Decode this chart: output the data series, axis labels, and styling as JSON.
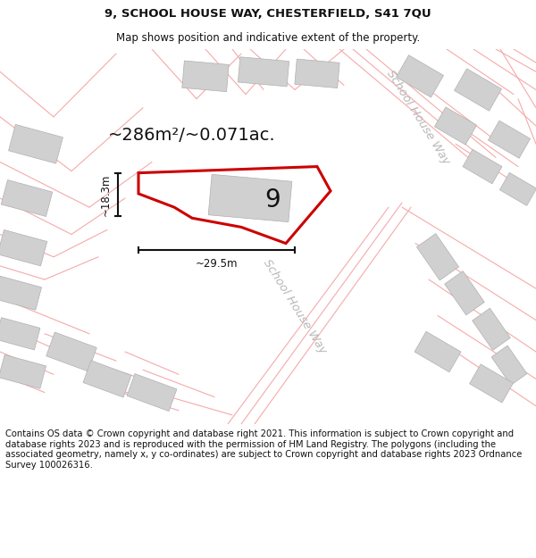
{
  "title": "9, SCHOOL HOUSE WAY, CHESTERFIELD, S41 7QU",
  "subtitle": "Map shows position and indicative extent of the property.",
  "footer": "Contains OS data © Crown copyright and database right 2021. This information is subject to Crown copyright and database rights 2023 and is reproduced with the permission of HM Land Registry. The polygons (including the associated geometry, namely x, y co-ordinates) are subject to Crown copyright and database rights 2023 Ordnance Survey 100026316.",
  "area_label": "~286m²/~0.071ac.",
  "property_number": "9",
  "dim_width": "~29.5m",
  "dim_height": "~18.3m",
  "road_label_upper": "School House Way",
  "road_label_lower": "School House Way",
  "map_bg": "#f7f2f2",
  "plot_edge_color": "#cc0000",
  "building_color": "#d0d0d0",
  "road_line_color": "#f5aaaa",
  "dim_line_color": "#111111",
  "title_fontsize": 9.5,
  "subtitle_fontsize": 8.5,
  "footer_fontsize": 7.2,
  "area_fontsize": 14,
  "number_fontsize": 20,
  "road_label_fontsize": 9.5,
  "dim_fontsize": 8.5
}
